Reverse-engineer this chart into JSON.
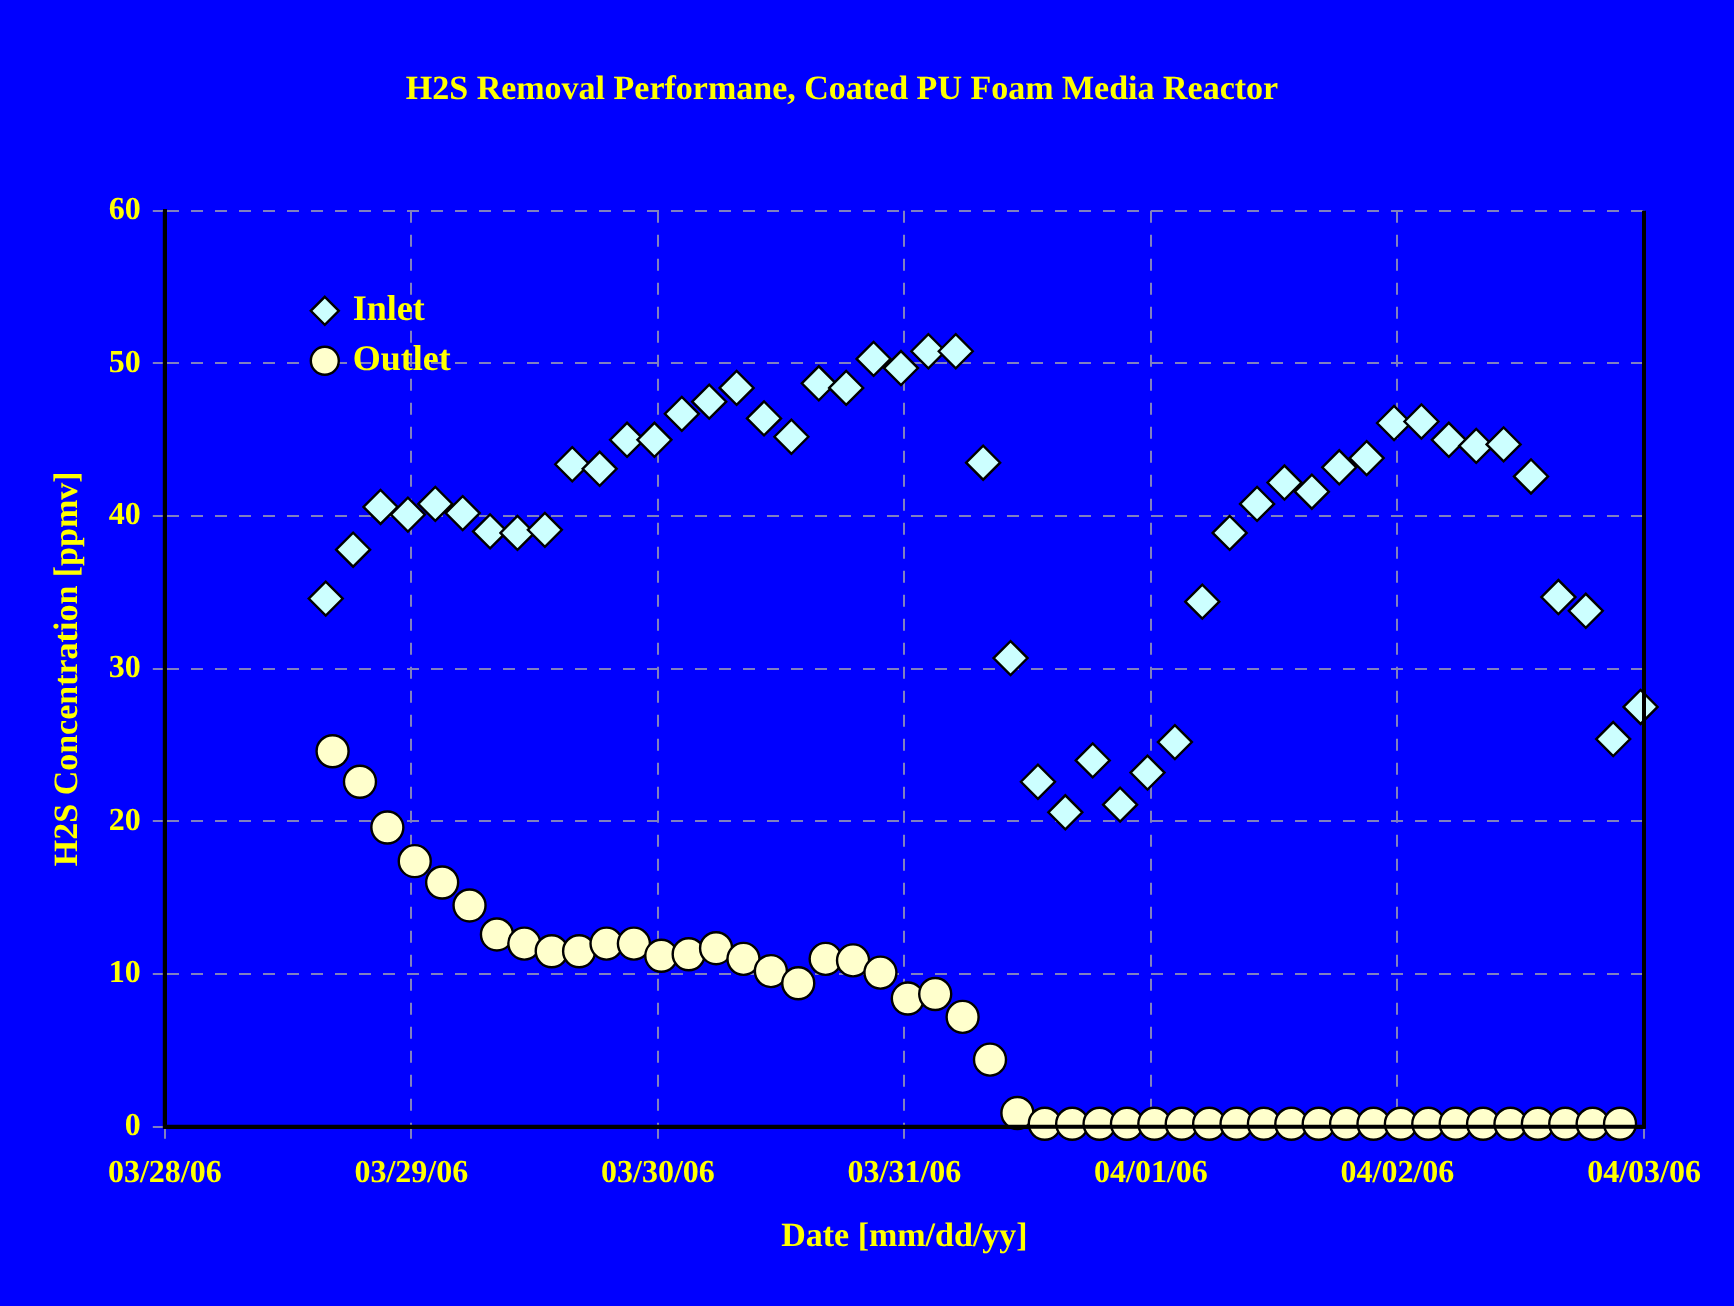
{
  "chart_data": {
    "type": "scatter",
    "title": "H2S Removal Performane, Coated PU Foam Media Reactor",
    "xlabel": "Date [mm/dd/yy]",
    "ylabel": "H2S Concentration [ppmv]",
    "xlim": [
      "--03-28",
      "--04-03"
    ],
    "xticks": [
      {
        "value": "--03-28",
        "label": "03/28/06"
      },
      {
        "value": "--03-29",
        "label": "03/29/06"
      },
      {
        "value": "--03-30",
        "label": "03/30/06"
      },
      {
        "value": "--03-31",
        "label": "03/31/06"
      },
      {
        "value": "--04-01",
        "label": "04/01/06"
      },
      {
        "value": "--04-02",
        "label": "04/02/06"
      },
      {
        "value": "--04-03",
        "label": "04/03/06"
      }
    ],
    "ylim": [
      0,
      60
    ],
    "yticks": [
      0,
      10,
      20,
      30,
      40,
      50,
      60
    ],
    "grid": true,
    "legend": "top left",
    "series": [
      {
        "name": "Inlet",
        "color": "#ccffff",
        "marker": "diamond",
        "x": [
          "--03-28T15:40",
          "--03-28T18:20",
          "--03-28T21:00",
          "--03-28T23:40",
          "--03-29T02:20",
          "--03-29T05:00",
          "--03-29T07:40",
          "--03-29T10:20",
          "--03-29T13:00",
          "--03-29T15:40",
          "--03-29T18:20",
          "--03-29T21:00",
          "--03-29T23:40",
          "--03-30T02:20",
          "--03-30T05:00",
          "--03-30T07:40",
          "--03-30T10:20",
          "--03-30T13:00",
          "--03-30T15:40",
          "--03-30T18:20",
          "--03-30T21:00",
          "--03-30T23:40",
          "--03-31T02:20",
          "--03-31T05:00",
          "--03-31T07:40",
          "--03-31T10:20",
          "--03-31T13:00",
          "--03-31T15:40",
          "--03-31T18:20",
          "--03-31T21:00",
          "--03-31T23:40",
          "--04-01T02:20",
          "--04-01T05:00",
          "--04-01T07:40",
          "--04-01T10:20",
          "--04-01T13:00",
          "--04-01T15:40",
          "--04-01T18:20",
          "--04-01T21:00",
          "--04-01T23:40",
          "--04-02T02:20",
          "--04-02T05:00",
          "--04-02T07:40",
          "--04-02T10:20",
          "--04-02T13:00",
          "--04-02T15:40",
          "--04-02T18:20",
          "--04-02T21:00",
          "--04-02T23:40"
        ],
        "values": [
          34.6,
          37.8,
          40.6,
          40.1,
          40.8,
          40.2,
          39.0,
          38.9,
          39.1,
          43.4,
          43.1,
          45.0,
          45.0,
          46.7,
          47.5,
          48.4,
          46.4,
          45.2,
          48.7,
          48.4,
          50.3,
          49.7,
          50.8,
          50.8,
          43.5,
          30.7,
          22.6,
          20.6,
          24.0,
          21.1,
          23.2,
          25.2,
          34.4,
          38.9,
          40.8,
          42.2,
          41.6,
          43.2,
          43.8,
          46.1,
          46.2,
          45.0,
          44.6,
          44.7,
          42.6,
          34.7,
          33.8,
          25.4,
          27.5
        ]
      },
      {
        "name": "Outlet",
        "color": "#ffffcc",
        "marker": "circle",
        "x": [
          "--03-28T16:20",
          "--03-28T19:00",
          "--03-28T21:40",
          "--03-29T00:20",
          "--03-29T03:00",
          "--03-29T05:40",
          "--03-29T08:20",
          "--03-29T11:00",
          "--03-29T13:40",
          "--03-29T16:20",
          "--03-29T19:00",
          "--03-29T21:40",
          "--03-30T00:20",
          "--03-30T03:00",
          "--03-30T05:40",
          "--03-30T08:20",
          "--03-30T11:00",
          "--03-30T13:40",
          "--03-30T16:20",
          "--03-30T19:00",
          "--03-30T21:40",
          "--03-31T00:20",
          "--03-31T03:00",
          "--03-31T05:40",
          "--03-31T08:20",
          "--03-31T11:00",
          "--03-31T13:40",
          "--03-31T16:20",
          "--03-31T19:00",
          "--03-31T21:40",
          "--04-01T00:20",
          "--04-01T03:00",
          "--04-01T05:40",
          "--04-01T08:20",
          "--04-01T11:00",
          "--04-01T13:40",
          "--04-01T16:20",
          "--04-01T19:00",
          "--04-01T21:40",
          "--04-02T00:20",
          "--04-02T03:00",
          "--04-02T05:40",
          "--04-02T08:20",
          "--04-02T11:00",
          "--04-02T13:40",
          "--04-02T16:20",
          "--04-02T19:00",
          "--04-02T21:40"
        ],
        "values": [
          24.6,
          22.6,
          19.6,
          17.4,
          16.0,
          14.5,
          12.6,
          12.0,
          11.5,
          11.5,
          12.0,
          12.0,
          11.2,
          11.3,
          11.7,
          11.0,
          10.2,
          9.4,
          11.0,
          10.9,
          10.1,
          8.4,
          8.7,
          7.2,
          4.4,
          0.9,
          0.2,
          0.2,
          0.2,
          0.2,
          0.2,
          0.2,
          0.2,
          0.2,
          0.2,
          0.2,
          0.2,
          0.2,
          0.2,
          0.2,
          0.2,
          0.2,
          0.2,
          0.2,
          0.2,
          0.2,
          0.2,
          0.2
        ]
      }
    ]
  }
}
